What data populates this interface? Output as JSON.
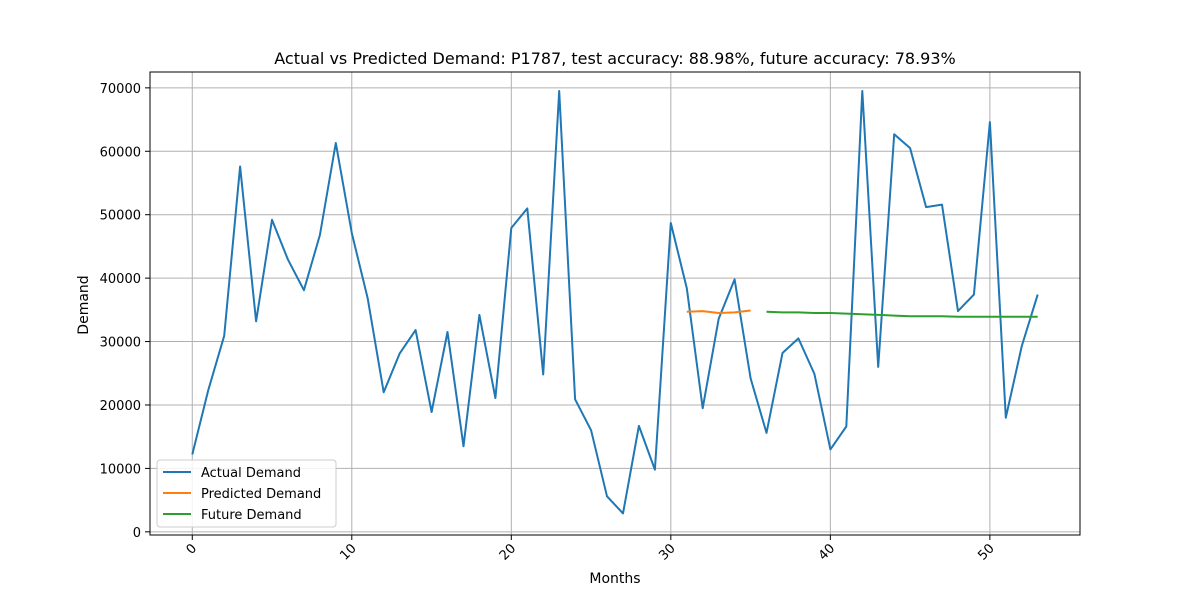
{
  "chart_data": {
    "type": "line",
    "title": "Actual vs Predicted Demand: P1787, test accuracy: 88.98%, future accuracy: 78.93%",
    "xlabel": "Months",
    "ylabel": "Demand",
    "xlim": [
      -2.65,
      55.65
    ],
    "ylim": [
      -500,
      72500
    ],
    "xticks": [
      0,
      10,
      20,
      30,
      40,
      50
    ],
    "yticks": [
      0,
      10000,
      20000,
      30000,
      40000,
      50000,
      60000,
      70000
    ],
    "grid": true,
    "legend_position": "lower-left",
    "series": [
      {
        "name": "Actual Demand",
        "color": "#1f77b4",
        "x": [
          0,
          1,
          2,
          3,
          4,
          5,
          6,
          7,
          8,
          9,
          10,
          11,
          12,
          13,
          14,
          15,
          16,
          17,
          18,
          19,
          20,
          21,
          22,
          23,
          24,
          25,
          26,
          27,
          28,
          29,
          30,
          31,
          32,
          33,
          34,
          35,
          36,
          37,
          38,
          39,
          40,
          41,
          42,
          43,
          44,
          45,
          46,
          47,
          48,
          49,
          50,
          51,
          52,
          53
        ],
        "values": [
          12200,
          22300,
          30900,
          57600,
          33200,
          49200,
          42900,
          38100,
          46800,
          61300,
          47100,
          36800,
          22000,
          28100,
          31800,
          18900,
          31500,
          13500,
          34200,
          21100,
          47900,
          51000,
          24800,
          69500,
          20900,
          16000,
          5600,
          2900,
          16700,
          9800,
          48700,
          38400,
          19500,
          33600,
          39800,
          24200,
          15600,
          28200,
          30500,
          24900,
          13000,
          16600,
          69500,
          26000,
          62700,
          60500,
          51200,
          51600,
          34800,
          37400,
          64600,
          18000,
          29300,
          37400
        ]
      },
      {
        "name": "Predicted Demand",
        "color": "#ff7f0e",
        "x": [
          31,
          32,
          33,
          34,
          35
        ],
        "values": [
          34700,
          34800,
          34500,
          34600,
          34900
        ]
      },
      {
        "name": "Future Demand",
        "color": "#2ca02c",
        "x": [
          36,
          37,
          38,
          39,
          40,
          41,
          42,
          43,
          44,
          45,
          46,
          47,
          48,
          49,
          50,
          51,
          52,
          53
        ],
        "values": [
          34700,
          34600,
          34600,
          34500,
          34500,
          34400,
          34300,
          34200,
          34100,
          34000,
          34000,
          34000,
          33900,
          33900,
          33900,
          33900,
          33900,
          33900
        ]
      }
    ]
  }
}
